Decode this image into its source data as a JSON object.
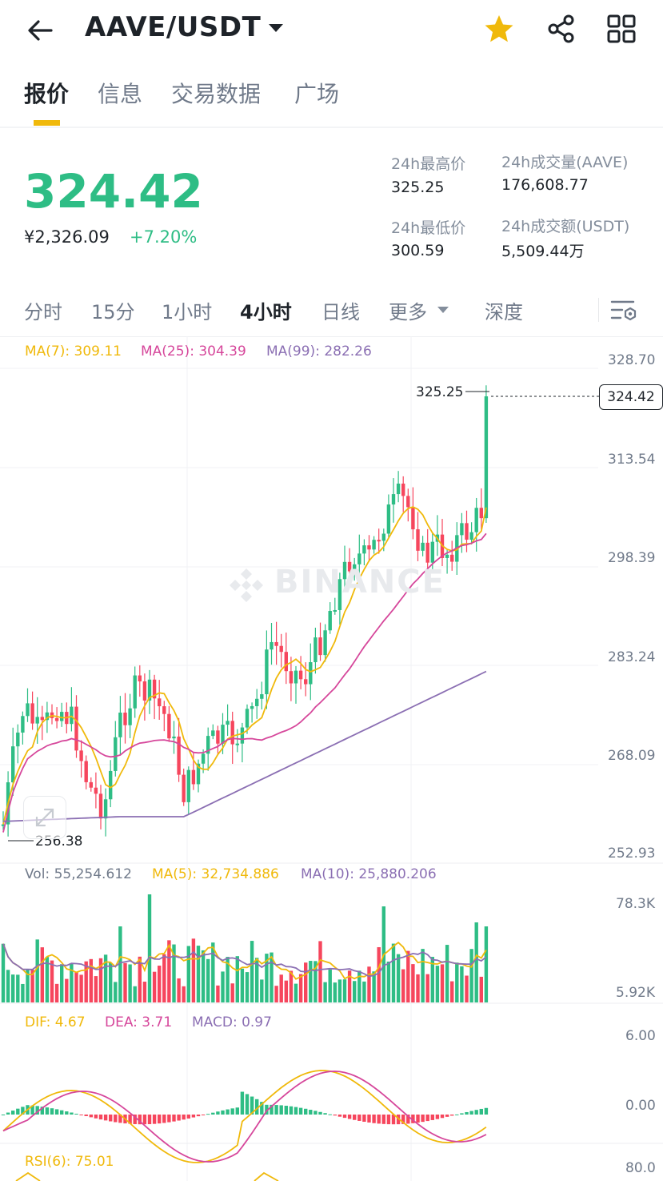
{
  "header": {
    "pair": "AAVE/USDT",
    "icons": [
      "back-arrow-icon",
      "star-icon",
      "share-icon",
      "grid-icon"
    ],
    "star_color": "#f0b90b"
  },
  "tabs": [
    {
      "label": "报价",
      "active": true
    },
    {
      "label": "信息",
      "active": false
    },
    {
      "label": "交易数据",
      "active": false
    },
    {
      "label": "广场",
      "active": false
    }
  ],
  "quote": {
    "price": "324.42",
    "cny": "¥2,326.09",
    "change": "+7.20%",
    "high_label": "24h最高价",
    "high": "325.25",
    "low_label": "24h最低价",
    "low": "300.59",
    "vol_label": "24h成交量(AAVE)",
    "vol": "176,608.77",
    "turnover_label": "24h成交额(USDT)",
    "turnover": "5,509.44万"
  },
  "timeframes": [
    {
      "label": "分时",
      "active": false
    },
    {
      "label": "15分",
      "active": false
    },
    {
      "label": "1小时",
      "active": false
    },
    {
      "label": "4小时",
      "active": true
    },
    {
      "label": "日线",
      "active": false
    },
    {
      "label": "更多",
      "active": false
    },
    {
      "label": "深度",
      "active": false
    }
  ],
  "colors": {
    "up": "#2ebd85",
    "down": "#f6465d",
    "ma7": "#f0b90b",
    "ma25": "#d6479b",
    "ma99": "#8b6fb3"
  },
  "indicators": {
    "ma7": "MA(7): 309.11",
    "ma25": "MA(25): 304.39",
    "ma99": "MA(99): 282.26",
    "vol": "Vol: 55,254.612",
    "vol_ma5": "MA(5): 32,734.886",
    "vol_ma10": "MA(10): 25,880.206",
    "dif": "DIF: 4.67",
    "dea": "DEA: 3.71",
    "macd": "MACD: 0.97",
    "rsi": "RSI(6): 75.01"
  },
  "price_axis": [
    "328.70",
    "313.54",
    "298.39",
    "283.24",
    "268.09",
    "252.93"
  ],
  "vol_axis": [
    "78.3K",
    "5.92K"
  ],
  "macd_axis": [
    "6.00",
    "0.00"
  ],
  "rsi_axis": [
    "80.0"
  ],
  "markers": {
    "high": "325.25",
    "low": "256.38",
    "last": "324.42"
  },
  "watermark": "BINANCE"
}
